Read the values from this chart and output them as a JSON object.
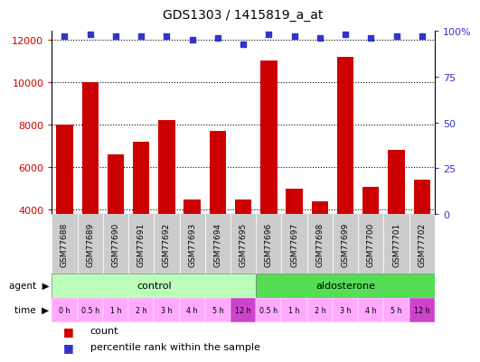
{
  "title": "GDS1303 / 1415819_a_at",
  "samples": [
    "GSM77688",
    "GSM77689",
    "GSM77690",
    "GSM77691",
    "GSM77692",
    "GSM77693",
    "GSM77694",
    "GSM77695",
    "GSM77696",
    "GSM77697",
    "GSM77698",
    "GSM77699",
    "GSM77700",
    "GSM77701",
    "GSM77702"
  ],
  "counts": [
    8000,
    10000,
    6600,
    7200,
    8200,
    4500,
    7700,
    4500,
    11000,
    5000,
    4400,
    11200,
    5100,
    6800,
    5400
  ],
  "percentiles": [
    97,
    98,
    97,
    97,
    97,
    95,
    96,
    93,
    98,
    97,
    96,
    98,
    96,
    97,
    97
  ],
  "time_labels": [
    "0 h",
    "0.5 h",
    "1 h",
    "2 h",
    "3 h",
    "4 h",
    "5 h",
    "12 h",
    "0.5 h",
    "1 h",
    "2 h",
    "3 h",
    "4 h",
    "5 h",
    "12 h"
  ],
  "agent_control_count": 8,
  "agent_aldosterone_count": 7,
  "ylim_left": [
    3800,
    12400
  ],
  "ylim_right": [
    0,
    100
  ],
  "yticks_left": [
    4000,
    6000,
    8000,
    10000,
    12000
  ],
  "yticks_right": [
    0,
    25,
    50,
    75,
    100
  ],
  "bar_color": "#cc0000",
  "dot_color": "#3333cc",
  "control_color": "#bbffbb",
  "aldosterone_color": "#55dd55",
  "time_color_light": "#ffaaff",
  "time_color_dark": "#cc44cc",
  "label_area_color": "#cccccc",
  "time_colors": [
    "#ffaaff",
    "#ffaaff",
    "#ffaaff",
    "#ffaaff",
    "#ffaaff",
    "#ffaaff",
    "#ffaaff",
    "#cc44cc",
    "#ffaaff",
    "#ffaaff",
    "#ffaaff",
    "#ffaaff",
    "#ffaaff",
    "#ffaaff",
    "#cc44cc"
  ]
}
